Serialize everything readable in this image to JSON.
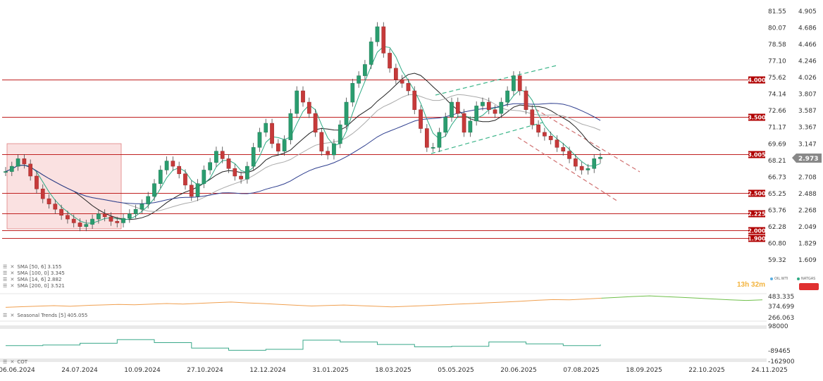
{
  "chart_data": {
    "type": "candlestick",
    "x_ticks": [
      "06.06.2024",
      "24.07.2024",
      "10.09.2024",
      "27.10.2024",
      "12.12.2024",
      "31.01.2025",
      "18.03.2025",
      "05.05.2025",
      "20.06.2025",
      "07.08.2025",
      "18.09.2025",
      "22.10.2025",
      "24.11.2025"
    ],
    "y_left_ticks": [
      "81.55",
      "80.07",
      "78.58",
      "77.10",
      "75.62",
      "74.14",
      "72.66",
      "71.17",
      "69.69",
      "68.21",
      "66.73",
      "65.25",
      "63.76",
      "62.28",
      "60.80",
      "59.32"
    ],
    "y_right_ticks": [
      "4.905",
      "4.686",
      "4.466",
      "4.246",
      "4.026",
      "3.807",
      "3.587",
      "3.367",
      "3.147",
      "2.927",
      "2.708",
      "2.488",
      "2.268",
      "2.049",
      "1.829",
      "1.609"
    ],
    "price_range": [
      1.609,
      4.905
    ],
    "current_price": "2.973",
    "horizontal_levels": [
      {
        "label": "4.000",
        "value": 4.0
      },
      {
        "label": "3.500",
        "value": 3.5
      },
      {
        "label": "3.005",
        "value": 3.005
      },
      {
        "label": "2.500",
        "value": 2.5
      },
      {
        "label": "2.225",
        "value": 2.225
      },
      {
        "label": "2.000",
        "value": 2.0
      },
      {
        "label": "1.900",
        "value": 1.9
      }
    ],
    "close_series": [
      2.78,
      2.85,
      2.95,
      2.88,
      2.72,
      2.55,
      2.42,
      2.35,
      2.28,
      2.2,
      2.15,
      2.1,
      2.05,
      2.08,
      2.15,
      2.22,
      2.18,
      2.12,
      2.1,
      2.16,
      2.22,
      2.28,
      2.35,
      2.45,
      2.62,
      2.8,
      2.92,
      2.85,
      2.75,
      2.6,
      2.45,
      2.62,
      2.8,
      2.9,
      3.05,
      2.95,
      2.82,
      2.72,
      2.68,
      2.85,
      3.1,
      3.3,
      3.42,
      3.15,
      3.05,
      3.2,
      3.55,
      3.85,
      3.7,
      3.55,
      3.3,
      3.05,
      3.0,
      3.15,
      3.4,
      3.7,
      3.95,
      4.05,
      4.2,
      4.5,
      4.7,
      4.35,
      4.15,
      4.0,
      3.95,
      3.85,
      3.6,
      3.35,
      3.1,
      3.1,
      3.3,
      3.5,
      3.7,
      3.55,
      3.3,
      3.45,
      3.65,
      3.7,
      3.6,
      3.55,
      3.7,
      3.85,
      4.05,
      3.85,
      3.6,
      3.4,
      3.3,
      3.25,
      3.2,
      3.1,
      3.05,
      2.95,
      2.85,
      2.8,
      2.82,
      2.95,
      2.97
    ],
    "sma_series": [
      {
        "name": "SMA [50, 6] 3.155",
        "color": "#222222"
      },
      {
        "name": "SMA [100, 0] 3.345",
        "color": "#aaaaaa"
      },
      {
        "name": "SMA [14, 6] 2.882",
        "color": "#2eaa84"
      },
      {
        "name": "SMA [200, 0] 3.521",
        "color": "#2f3f8f"
      }
    ],
    "seasonal": {
      "name": "Seasonal Trends [5] 405.055",
      "y_ticks": [
        "483.335",
        "374.699",
        "266.063"
      ],
      "values": [
        382,
        388,
        393,
        398,
        392,
        400,
        405,
        410,
        406,
        412,
        418,
        413,
        420,
        426,
        432,
        424,
        418,
        410,
        402,
        395,
        400,
        404,
        398,
        392,
        386,
        392,
        398,
        405,
        412,
        418,
        425,
        432,
        440,
        448,
        455,
        452,
        460,
        468,
        476,
        484,
        490,
        482,
        476,
        468,
        460,
        452,
        447,
        452
      ]
    },
    "cot": {
      "name": "COT",
      "y_ticks": [
        "98000",
        "-89465",
        "-162900"
      ],
      "values": [
        -40000,
        -35000,
        -20000,
        10000,
        -15000,
        -60000,
        -78000,
        -70000,
        5000,
        -10000,
        -30000,
        -50000,
        -45000,
        -10000,
        -25000,
        -40000,
        -30000
      ]
    },
    "right_tags": [
      {
        "label": "OIL.WTI",
        "color": "#5aaee0"
      },
      {
        "label": "NATGAS",
        "color": "#2eaa84"
      }
    ],
    "timer": "13h 32m"
  }
}
